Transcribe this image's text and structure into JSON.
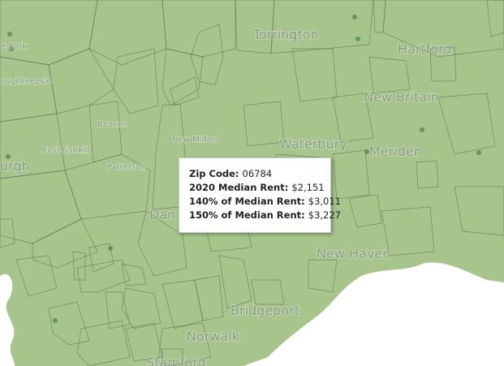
{
  "map": {
    "place_labels": [
      {
        "text": "Torrington",
        "size": "large"
      },
      {
        "text": "Hartford",
        "size": "large"
      },
      {
        "text": "New Britain",
        "size": "large"
      },
      {
        "text": "Waterbury",
        "size": "large"
      },
      {
        "text": "Meriden",
        "size": "large"
      },
      {
        "text": "New Milford",
        "size": "small"
      },
      {
        "text": "Dan",
        "size": "large"
      },
      {
        "text": "Bridgeport",
        "size": "large"
      },
      {
        "text": "Norwalk",
        "size": "large"
      },
      {
        "text": "New Haven",
        "size": "large"
      },
      {
        "text": "Stamford",
        "size": "large"
      },
      {
        "text": "East Fishkill",
        "size": "small"
      },
      {
        "text": "Patterson",
        "size": "small"
      },
      {
        "text": "Beacon",
        "size": "small"
      },
      {
        "text": "oughkeepsie",
        "size": "small"
      },
      {
        "text": "e Park",
        "size": "small"
      },
      {
        "text": "urgh",
        "size": "large"
      }
    ],
    "tooltip": {
      "rows": [
        {
          "label": "Zip Code:",
          "value": "06784"
        },
        {
          "label": "2020 Median Rent:",
          "value": "$2,151"
        },
        {
          "label": "140% of Median Rent:",
          "value": "$3,011"
        },
        {
          "label": "150% of Median Rent:",
          "value": "$3,227"
        }
      ]
    }
  }
}
